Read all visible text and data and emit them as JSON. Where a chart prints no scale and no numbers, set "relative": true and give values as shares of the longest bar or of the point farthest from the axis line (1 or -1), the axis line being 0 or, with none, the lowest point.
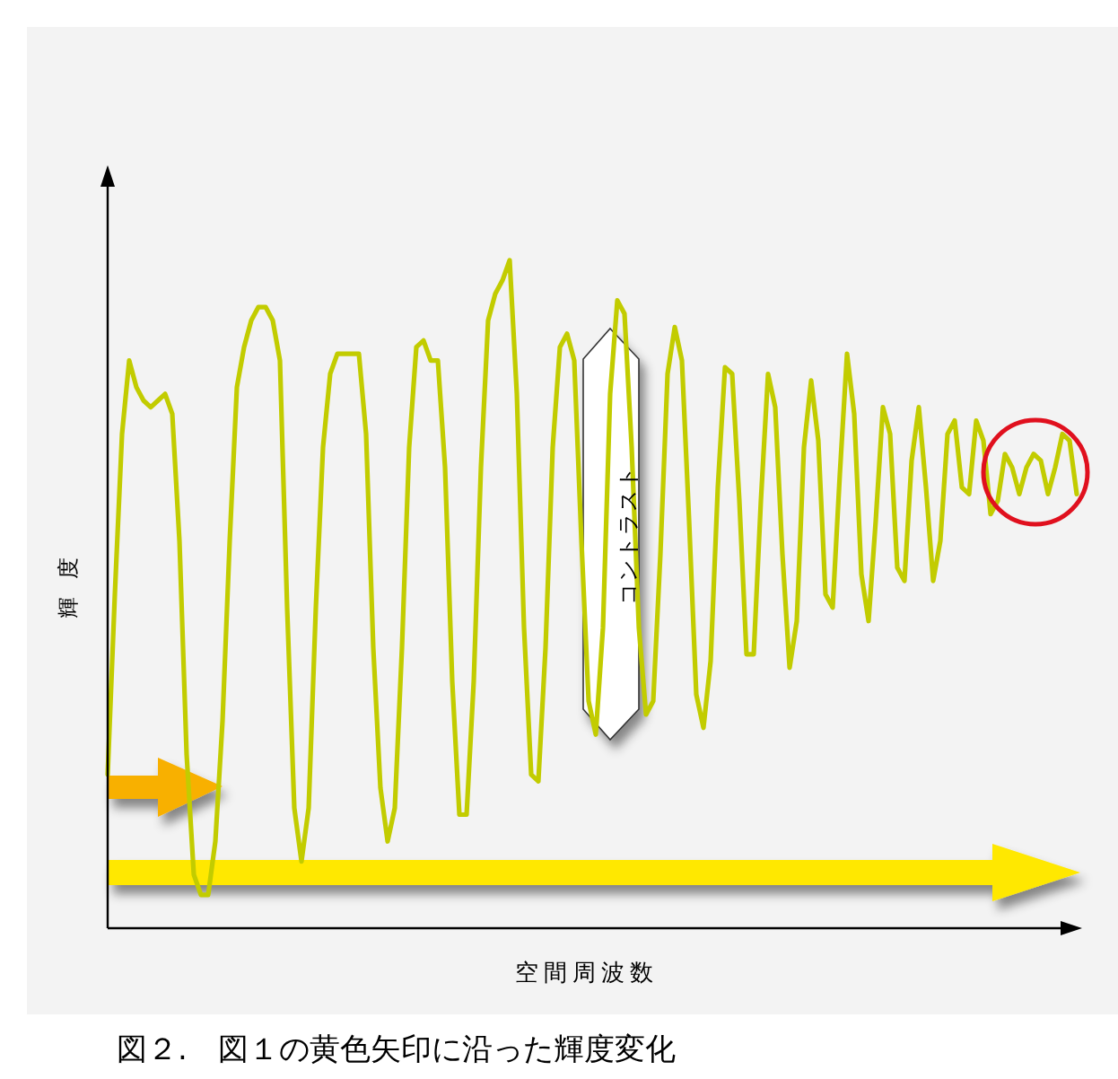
{
  "chart_data": {
    "type": "line",
    "relative": true,
    "xlabel": "空間周波数",
    "ylabel": "輝 度",
    "categories": [
      null,
      null,
      null,
      null,
      null,
      null,
      null,
      null,
      null,
      null,
      null,
      null,
      null,
      null,
      null,
      null,
      null,
      null,
      null,
      null,
      null,
      null,
      null,
      null,
      null,
      null,
      null,
      null,
      null,
      null,
      null,
      null,
      null,
      null,
      null,
      null,
      null,
      null,
      null,
      null,
      null,
      null,
      null,
      null,
      null,
      null,
      null,
      null,
      null,
      null,
      null,
      null,
      null,
      null,
      null,
      null,
      null,
      null,
      null,
      null,
      null,
      null,
      null,
      null,
      null,
      null,
      null,
      null,
      null,
      null,
      null,
      null,
      null,
      null,
      null,
      null,
      null,
      null,
      null,
      null,
      null,
      null,
      null,
      null,
      null,
      null,
      null,
      null,
      null,
      null,
      null,
      null,
      null,
      null,
      null,
      null,
      null,
      null,
      null,
      null,
      null,
      null,
      null,
      null,
      null,
      null,
      null,
      null,
      null,
      null,
      null,
      null,
      null,
      null,
      null,
      null,
      null,
      null,
      null,
      null,
      null,
      null,
      null,
      null,
      null,
      null,
      null,
      null,
      null,
      null,
      null,
      null,
      null,
      null,
      null,
      null
    ],
    "series": [
      {
        "color": "#c2cc00",
        "values": [
          0.23,
          0.5,
          0.74,
          0.85,
          0.81,
          0.79,
          0.78,
          0.79,
          0.8,
          0.77,
          0.58,
          0.26,
          0.08,
          0.05,
          0.05,
          0.13,
          0.31,
          0.58,
          0.81,
          0.87,
          0.91,
          0.93,
          0.93,
          0.91,
          0.85,
          0.48,
          0.18,
          0.1,
          0.18,
          0.48,
          0.72,
          0.83,
          0.86,
          0.86,
          0.86,
          0.86,
          0.74,
          0.42,
          0.21,
          0.13,
          0.18,
          0.42,
          0.72,
          0.87,
          0.88,
          0.85,
          0.85,
          0.69,
          0.37,
          0.17,
          0.17,
          0.37,
          0.69,
          0.91,
          0.95,
          0.97,
          1,
          0.8,
          0.45,
          0.23,
          0.22,
          0.42,
          0.72,
          0.87,
          0.89,
          0.85,
          0.58,
          0.34,
          0.29,
          0.45,
          0.8,
          0.94,
          0.92,
          0.72,
          0.45,
          0.32,
          0.34,
          0.56,
          0.83,
          0.9,
          0.85,
          0.61,
          0.35,
          0.3,
          0.4,
          0.66,
          0.84,
          0.83,
          0.64,
          0.41,
          0.41,
          0.64,
          0.83,
          0.78,
          0.56,
          0.39,
          0.46,
          0.72,
          0.82,
          0.73,
          0.5,
          0.48,
          0.68,
          0.86,
          0.77,
          0.53,
          0.46,
          0.61,
          0.78,
          0.74,
          0.54,
          0.52,
          0.7,
          0.78,
          0.66,
          0.52,
          0.58,
          0.74,
          0.76,
          0.66,
          0.65,
          0.76,
          0.73,
          0.62,
          0.64,
          0.71,
          0.69,
          0.65,
          0.69,
          0.71,
          0.7,
          0.65,
          0.69,
          0.74,
          0.73,
          0.65
        ]
      }
    ],
    "annotations": [
      "コントラスト",
      "図２.　図１の黄色矢印に沿った輝度変化"
    ],
    "grid": false,
    "marker": "none",
    "line_style": "solid"
  }
}
